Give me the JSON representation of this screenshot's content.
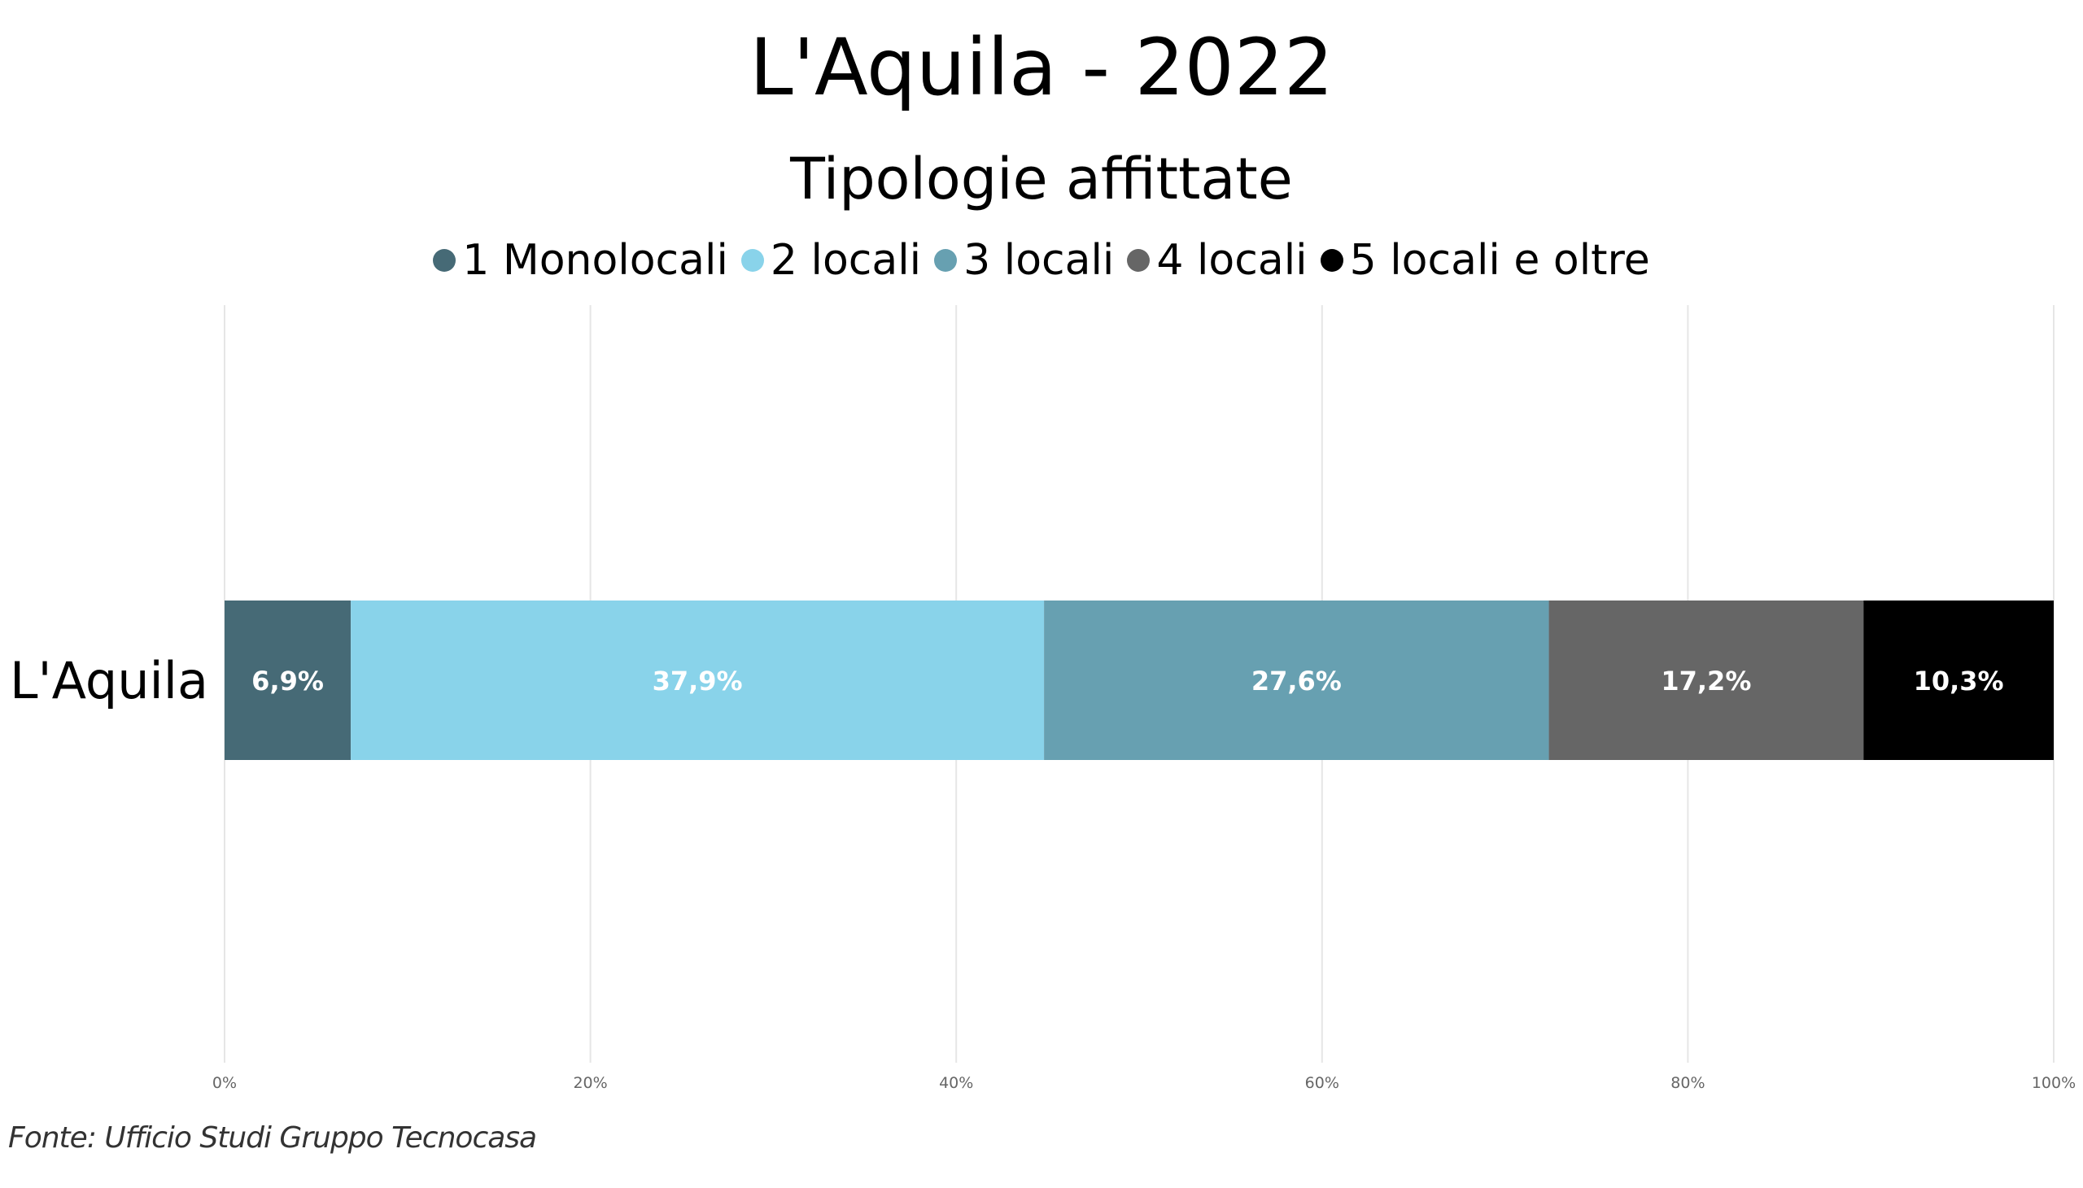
{
  "chart_data": {
    "type": "bar",
    "orientation": "horizontal",
    "stacked": "percent",
    "title": "L'Aquila - 2022",
    "subtitle": "Tipologie affittate",
    "categories": [
      "L'Aquila"
    ],
    "series": [
      {
        "name": "1 Monolocali",
        "values": [
          6.9
        ],
        "label": "6,9%",
        "color": "#466A76"
      },
      {
        "name": "2 locali",
        "values": [
          37.9
        ],
        "label": "37,9%",
        "color": "#89D3EA"
      },
      {
        "name": "3 locali",
        "values": [
          27.6
        ],
        "label": "27,6%",
        "color": "#67A0B1"
      },
      {
        "name": "4 locali",
        "values": [
          17.2
        ],
        "label": "17,2%",
        "color": "#666666"
      },
      {
        "name": "5 locali e oltre",
        "values": [
          10.3
        ],
        "label": "10,3%",
        "color": "#000000"
      }
    ],
    "xlim": [
      0,
      100
    ],
    "xticks": [
      0,
      20,
      40,
      60,
      80,
      100
    ],
    "xtick_labels": [
      "0%",
      "20%",
      "40%",
      "60%",
      "80%",
      "100%"
    ],
    "grid": true,
    "legend_position": "top"
  },
  "footer": "Fonte: Ufficio Studi Gruppo Tecnocasa"
}
